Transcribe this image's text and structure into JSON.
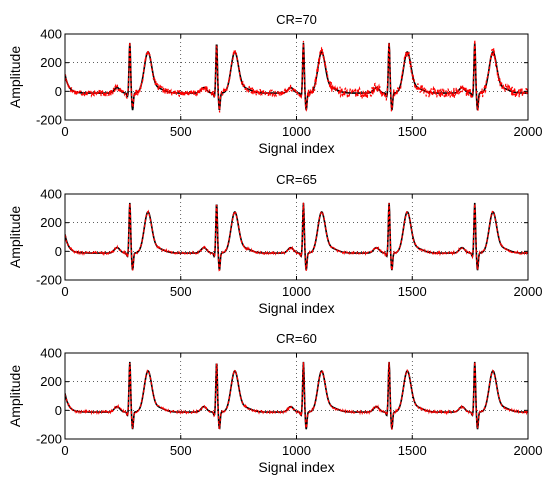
{
  "chart_data": [
    {
      "type": "line",
      "title": "CR=70",
      "xlabel": "Signal index",
      "ylabel": "Amplitude",
      "xlim": [
        0,
        2000
      ],
      "ylim": [
        -200,
        400
      ],
      "xticks": [
        0,
        500,
        1000,
        1500,
        2000
      ],
      "yticks": [
        -200,
        0,
        200,
        400
      ],
      "grid": true,
      "legend": "none",
      "beats_r_peak_x": [
        280,
        655,
        1030,
        1400,
        1770
      ],
      "series": [
        {
          "color": "#000000",
          "style": "solid",
          "peak_y": 325,
          "trough_y": -130,
          "t_wave_y": 285
        },
        {
          "color": "#ff0000",
          "style": "dashed",
          "noise_level": 22
        }
      ]
    },
    {
      "type": "line",
      "title": "CR=65",
      "xlabel": "Signal index",
      "ylabel": "Amplitude",
      "xlim": [
        0,
        2000
      ],
      "ylim": [
        -200,
        400
      ],
      "xticks": [
        0,
        500,
        1000,
        1500,
        2000
      ],
      "yticks": [
        -200,
        0,
        200,
        400
      ],
      "grid": true,
      "legend": "none",
      "beats_r_peak_x": [
        280,
        655,
        1030,
        1400,
        1770
      ],
      "series": [
        {
          "color": "#000000",
          "style": "solid",
          "peak_y": 325,
          "trough_y": -130,
          "t_wave_y": 285
        },
        {
          "color": "#ff0000",
          "style": "dashed",
          "noise_level": 8
        }
      ]
    },
    {
      "type": "line",
      "title": "CR=60",
      "xlabel": "Signal index",
      "ylabel": "Amplitude",
      "xlim": [
        0,
        2000
      ],
      "ylim": [
        -200,
        400
      ],
      "xticks": [
        0,
        500,
        1000,
        1500,
        2000
      ],
      "yticks": [
        -200,
        0,
        200,
        400
      ],
      "grid": true,
      "legend": "none",
      "beats_r_peak_x": [
        280,
        655,
        1030,
        1400,
        1770
      ],
      "series": [
        {
          "color": "#000000",
          "style": "solid",
          "peak_y": 325,
          "trough_y": -130,
          "t_wave_y": 285
        },
        {
          "color": "#ff0000",
          "style": "dashed",
          "noise_level": 8
        }
      ]
    }
  ]
}
